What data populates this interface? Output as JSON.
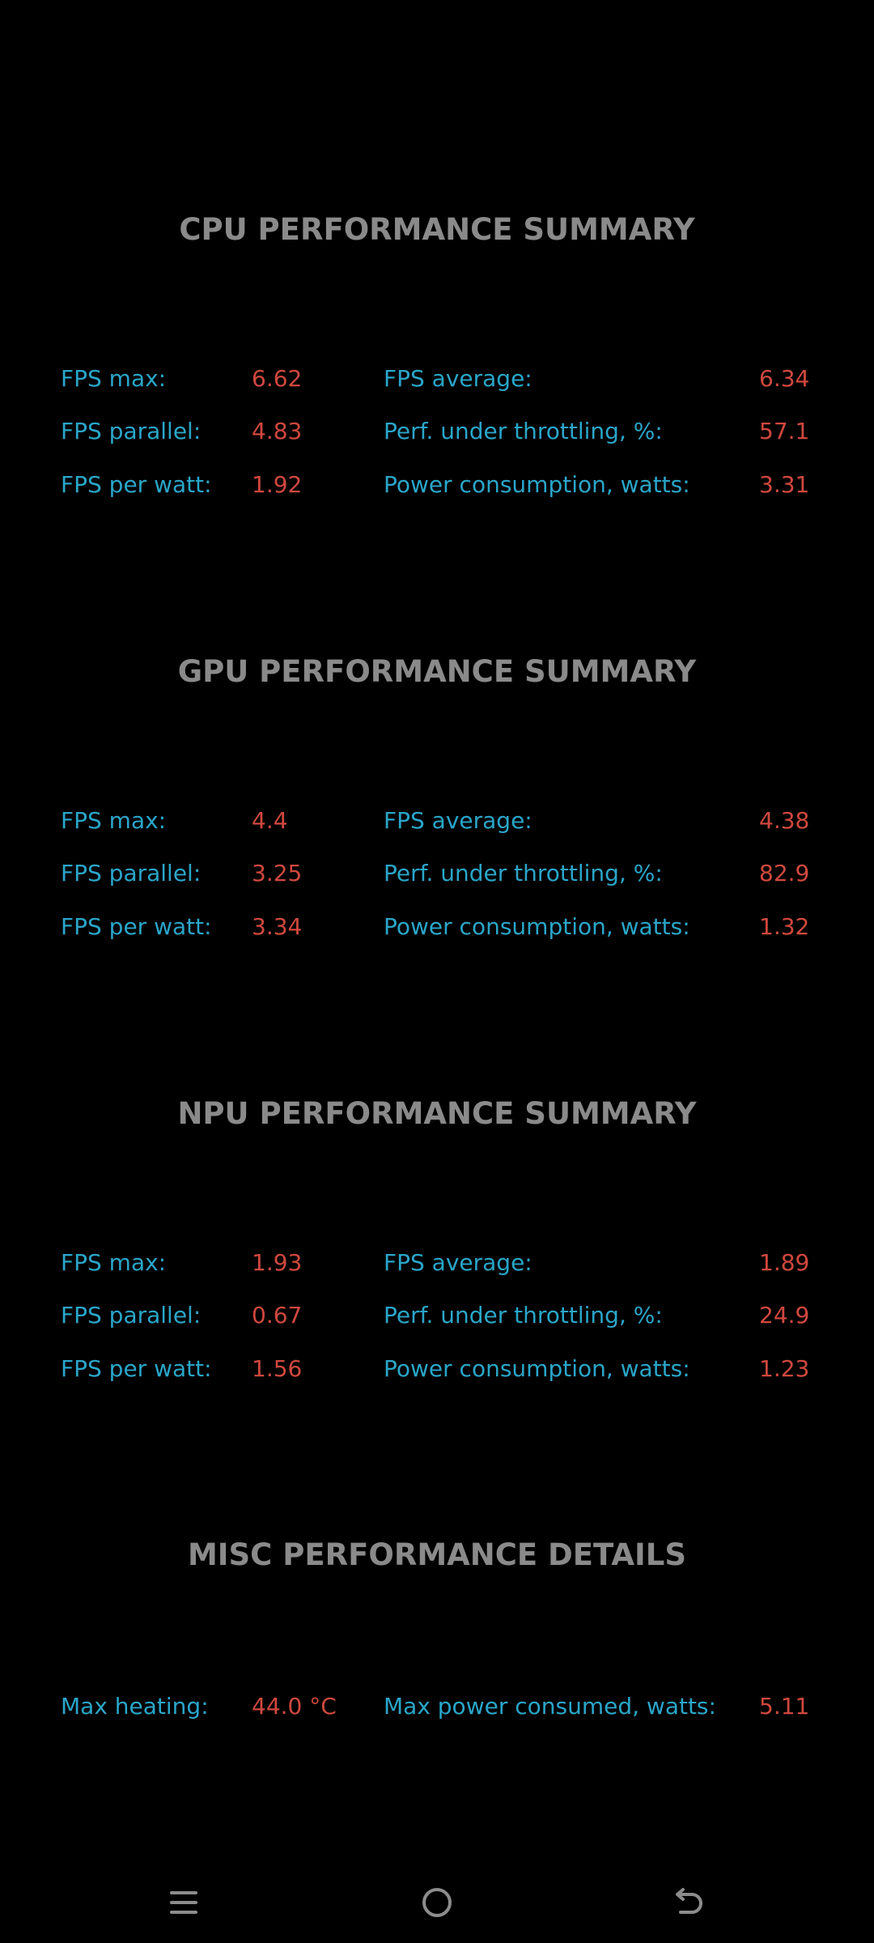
{
  "sections": [
    {
      "title": "CPU PERFORMANCE SUMMARY",
      "rows": [
        {
          "label1": "FPS max:",
          "value1": "6.62",
          "label2": "FPS average:",
          "value2": "6.34"
        },
        {
          "label1": "FPS parallel:",
          "value1": "4.83",
          "label2": "Perf. under throttling, %:",
          "value2": "57.1"
        },
        {
          "label1": "FPS per watt:",
          "value1": "1.92",
          "label2": "Power consumption, watts:",
          "value2": "3.31"
        }
      ]
    },
    {
      "title": "GPU PERFORMANCE SUMMARY",
      "rows": [
        {
          "label1": "FPS max:",
          "value1": "4.4",
          "label2": "FPS average:",
          "value2": "4.38"
        },
        {
          "label1": "FPS parallel:",
          "value1": "3.25",
          "label2": "Perf. under throttling, %:",
          "value2": "82.9"
        },
        {
          "label1": "FPS per watt:",
          "value1": "3.34",
          "label2": "Power consumption, watts:",
          "value2": "1.32"
        }
      ]
    },
    {
      "title": "NPU PERFORMANCE SUMMARY",
      "rows": [
        {
          "label1": "FPS max:",
          "value1": "1.93",
          "label2": "FPS average:",
          "value2": "1.89"
        },
        {
          "label1": "FPS parallel:",
          "value1": "0.67",
          "label2": "Perf. under throttling, %:",
          "value2": "24.9"
        },
        {
          "label1": "FPS per watt:",
          "value1": "1.56",
          "label2": "Power consumption, watts:",
          "value2": "1.23"
        }
      ]
    },
    {
      "title": "MISC PERFORMANCE DETAILS",
      "rows": [
        {
          "label1": "Max heating:",
          "value1": "44.0 °C",
          "label2": "Max power consumed, watts:",
          "value2": "5.11"
        }
      ]
    }
  ],
  "navbar": {
    "icons": [
      "menu-icon",
      "home-icon",
      "back-icon"
    ]
  },
  "colors": {
    "background": "#000000",
    "title": "#8a8a8a",
    "label": "#2aa6c9",
    "value": "#d0483e"
  }
}
